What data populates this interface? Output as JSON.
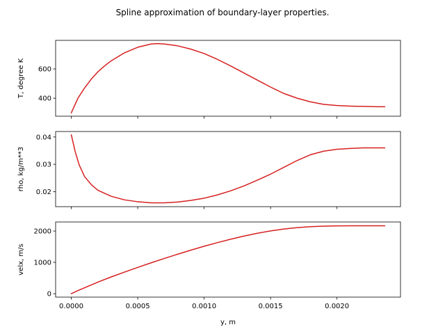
{
  "figure": {
    "suptitle": "Spline approximation of boundary-layer properties.",
    "series_color": "#d62020"
  },
  "chart_data": [
    {
      "type": "line",
      "xlabel": "",
      "ylabel": "T, degree K",
      "xlim": [
        -0.000118,
        0.002478
      ],
      "ylim": [
        277,
        795
      ],
      "yticks": [
        400,
        600
      ],
      "yticklabels": [
        "400",
        "600"
      ],
      "xticks": [
        0.0,
        0.0005,
        0.001,
        0.0015,
        0.002
      ],
      "show_xticklabels": false,
      "grid": false,
      "x": [
        0.0,
        5e-05,
        0.0001,
        0.00015,
        0.0002,
        0.00025,
        0.0003,
        0.0004,
        0.0005,
        0.0006,
        0.00065,
        0.0007,
        0.0008,
        0.0009,
        0.001,
        0.0011,
        0.0012,
        0.0013,
        0.0014,
        0.0015,
        0.0016,
        0.0017,
        0.0018,
        0.0019,
        0.002,
        0.0021,
        0.0022,
        0.0023,
        0.00236
      ],
      "y": [
        300,
        400,
        470,
        530,
        580,
        620,
        655,
        710,
        748,
        770,
        773,
        770,
        758,
        735,
        705,
        665,
        620,
        572,
        524,
        476,
        432,
        400,
        375,
        358,
        350,
        346,
        344,
        342,
        342
      ]
    },
    {
      "type": "line",
      "xlabel": "",
      "ylabel": "rho, kg/m**3",
      "xlim": [
        -0.000118,
        0.002478
      ],
      "ylim": [
        0.0145,
        0.042
      ],
      "yticks": [
        0.02,
        0.03,
        0.04
      ],
      "yticklabels": [
        "0.02",
        "0.03",
        "0.04"
      ],
      "xticks": [
        0.0,
        0.0005,
        0.001,
        0.0015,
        0.002
      ],
      "show_xticklabels": false,
      "grid": false,
      "x": [
        0.0,
        3e-05,
        6e-05,
        0.0001,
        0.00015,
        0.0002,
        0.0003,
        0.0004,
        0.0005,
        0.0006,
        0.0007,
        0.0008,
        0.0009,
        0.001,
        0.0011,
        0.0012,
        0.0013,
        0.0014,
        0.0015,
        0.0016,
        0.0017,
        0.0018,
        0.0019,
        0.002,
        0.0021,
        0.0022,
        0.0023,
        0.00236
      ],
      "y": [
        0.0408,
        0.0345,
        0.0297,
        0.0255,
        0.0226,
        0.0205,
        0.0183,
        0.017,
        0.0163,
        0.0159,
        0.0159,
        0.0162,
        0.0168,
        0.0176,
        0.0188,
        0.0203,
        0.0221,
        0.0242,
        0.0264,
        0.0289,
        0.0314,
        0.0335,
        0.0348,
        0.0355,
        0.0358,
        0.036,
        0.036,
        0.036
      ]
    },
    {
      "type": "line",
      "xlabel": "y, m",
      "ylabel": "velx, m/s",
      "xlim": [
        -0.000118,
        0.002478
      ],
      "ylim": [
        -109,
        2290
      ],
      "yticks": [
        0,
        1000,
        2000
      ],
      "yticklabels": [
        "0",
        "1000",
        "2000"
      ],
      "xticks": [
        0.0,
        0.0005,
        0.001,
        0.0015,
        0.002
      ],
      "xticklabels": [
        "0.0000",
        "0.0005",
        "0.0010",
        "0.0015",
        "0.0020"
      ],
      "show_xticklabels": true,
      "grid": false,
      "x": [
        0.0,
        5e-05,
        0.0001,
        0.0002,
        0.0003,
        0.0004,
        0.0005,
        0.0006,
        0.0007,
        0.0008,
        0.0009,
        0.001,
        0.0011,
        0.0012,
        0.0013,
        0.0014,
        0.0015,
        0.0016,
        0.0017,
        0.0018,
        0.0019,
        0.002,
        0.0021,
        0.0022,
        0.0023,
        0.00236
      ],
      "y": [
        0,
        100,
        190,
        370,
        535,
        690,
        840,
        985,
        1125,
        1260,
        1390,
        1515,
        1630,
        1740,
        1840,
        1930,
        2005,
        2065,
        2110,
        2140,
        2158,
        2165,
        2167,
        2168,
        2168,
        2168
      ]
    }
  ]
}
